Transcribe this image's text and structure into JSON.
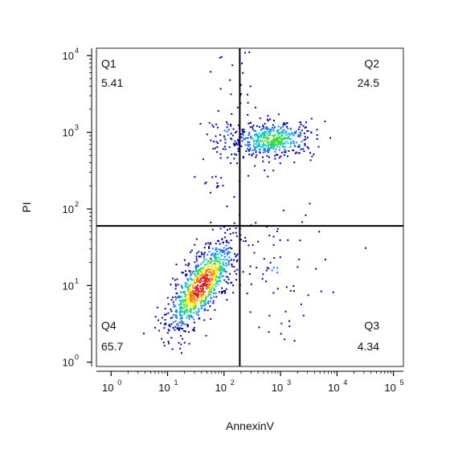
{
  "chart_data": {
    "type": "scatter",
    "style": "flow-cytometry density dot plot",
    "title": "",
    "xlabel": "AnnexinV",
    "ylabel": "PI",
    "x_scale": "log",
    "y_scale": "log",
    "xlim": [
      0.55,
      150000
    ],
    "ylim": [
      0.88,
      12500
    ],
    "x_ticks": [
      {
        "value": 1,
        "base": "10",
        "exp": "0"
      },
      {
        "value": 10,
        "base": "10",
        "exp": "1"
      },
      {
        "value": 100,
        "base": "10",
        "exp": "2"
      },
      {
        "value": 1000,
        "base": "10",
        "exp": "3"
      },
      {
        "value": 10000,
        "base": "10",
        "exp": "4"
      },
      {
        "value": 100000,
        "base": "10",
        "exp": "5"
      }
    ],
    "y_ticks": [
      {
        "value": 1,
        "base": "10",
        "exp": "0"
      },
      {
        "value": 10,
        "base": "10",
        "exp": "1"
      },
      {
        "value": 100,
        "base": "10",
        "exp": "2"
      },
      {
        "value": 1000,
        "base": "10",
        "exp": "3"
      },
      {
        "value": 10000,
        "base": "10",
        "exp": "4"
      }
    ],
    "gates": {
      "x": 190,
      "y": 60
    },
    "quadrants": [
      {
        "name": "Q1",
        "value": "5.41",
        "position": "top-left"
      },
      {
        "name": "Q2",
        "value": "24.5",
        "position": "top-right"
      },
      {
        "name": "Q3",
        "value": "4.34",
        "position": "bottom-right"
      },
      {
        "name": "Q4",
        "value": "65.7",
        "position": "bottom-left"
      }
    ],
    "populations": [
      {
        "quadrant": "Q4",
        "center": [
          40,
          10
        ],
        "count": 900
      },
      {
        "quadrant": "Q2",
        "center": [
          700,
          800
        ],
        "count": 460
      },
      {
        "quadrant": "Q1",
        "center": [
          110,
          800
        ],
        "count": 80
      },
      {
        "quadrant": "Q3",
        "center": [
          800,
          15
        ],
        "count": 70
      }
    ],
    "density_colors": [
      "#0000b4",
      "#1e6eff",
      "#00c8c8",
      "#32dc32",
      "#ffe600",
      "#ff7800",
      "#dc1e1e"
    ],
    "grid": false,
    "legend": "none"
  }
}
